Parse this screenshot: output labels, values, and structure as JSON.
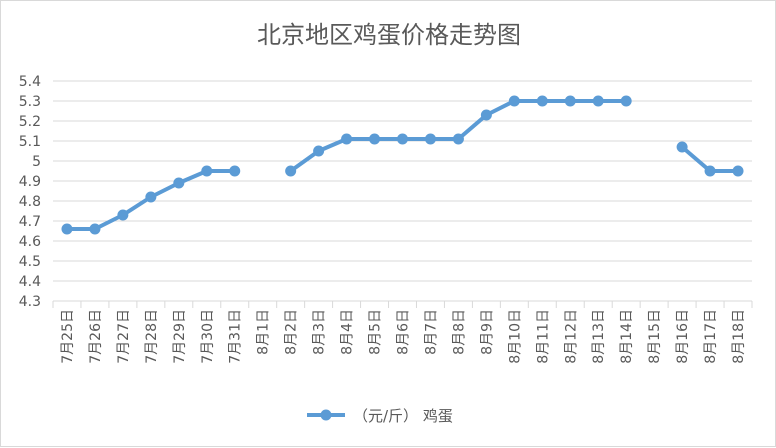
{
  "chart_data": {
    "type": "line",
    "title": "北京地区鸡蛋价格走势图",
    "xlabel": "",
    "ylabel": "",
    "ylim": [
      4.3,
      5.4
    ],
    "ytick_step": 0.1,
    "yticks": [
      "4.3",
      "4.4",
      "4.5",
      "4.6",
      "4.7",
      "4.8",
      "4.9",
      "5",
      "5.1",
      "5.2",
      "5.3",
      "5.4"
    ],
    "grid": true,
    "legend": "bottom",
    "categories": [
      "7月25日",
      "7月26日",
      "7月27日",
      "7月28日",
      "7月29日",
      "7月30日",
      "7月31日",
      "8月1日",
      "8月2日",
      "8月3日",
      "8月4日",
      "8月5日",
      "8月6日",
      "8月7日",
      "8月8日",
      "8月9日",
      "8月10日",
      "8月11日",
      "8月12日",
      "8月13日",
      "8月14日",
      "8月15日",
      "8月16日",
      "8月17日",
      "8月18日"
    ],
    "series": [
      {
        "name": "（元/斤） 鸡蛋",
        "color": "#5b9bd5",
        "values": [
          4.66,
          4.66,
          4.73,
          4.82,
          4.89,
          4.95,
          4.95,
          null,
          4.95,
          5.05,
          5.11,
          5.11,
          5.11,
          5.11,
          5.11,
          5.23,
          5.3,
          5.3,
          5.3,
          5.3,
          5.3,
          null,
          5.07,
          4.95,
          4.95
        ]
      }
    ]
  }
}
